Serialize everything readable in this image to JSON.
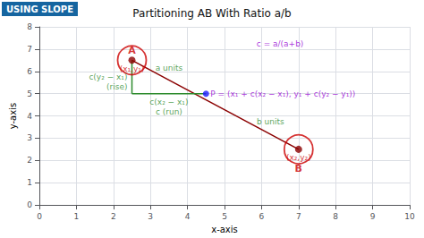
{
  "chart_data": {
    "type": "line",
    "title": "Partitioning AB With Ratio a/b",
    "xlabel": "x-axis",
    "ylabel": "y-axis",
    "xlim": [
      0,
      10
    ],
    "ylim": [
      0,
      8
    ],
    "xticks": [
      0,
      1,
      2,
      3,
      4,
      5,
      6,
      7,
      8,
      9,
      10
    ],
    "yticks": [
      0,
      1,
      2,
      3,
      4,
      5,
      6,
      7,
      8
    ],
    "grid": true,
    "series": [
      {
        "type": "line",
        "color": "#8B0000",
        "x": [
          2.5,
          7
        ],
        "values": [
          6.5,
          2.5
        ]
      },
      {
        "type": "line",
        "color": "#2e8b2e",
        "x": [
          2.5,
          2.5
        ],
        "values": [
          6.5,
          5.0
        ]
      },
      {
        "type": "line",
        "color": "#2e8b2e",
        "x": [
          2.5,
          4.5
        ],
        "values": [
          5.0,
          5.0
        ]
      },
      {
        "type": "scatter",
        "marker": "ring",
        "color": "#cc0000",
        "x": [
          2.5,
          7
        ],
        "values": [
          6.5,
          2.5
        ]
      },
      {
        "type": "scatter",
        "marker": "circle",
        "color": "#8B0000",
        "x": [
          2.5,
          7
        ],
        "values": [
          6.5,
          2.5
        ]
      },
      {
        "type": "scatter",
        "marker": "circle",
        "color": "#1a1aff",
        "x": [
          4.5
        ],
        "values": [
          5.0
        ]
      }
    ],
    "annotations": [
      {
        "text": "A",
        "x": 2.5,
        "y": 6.5,
        "position": "top",
        "color": "#cc0000"
      },
      {
        "text": "(x₁,y₁)",
        "x": 2.5,
        "y": 6.5,
        "position": "bottom",
        "color": "#cc0000"
      },
      {
        "text": "(x₂,y₂)",
        "x": 7,
        "y": 2.5,
        "position": "bottom",
        "color": "#cc0000"
      },
      {
        "text": "B",
        "x": 7,
        "y": 2.5,
        "position": "bottom",
        "color": "#cc0000"
      },
      {
        "text": "c(y₂ − x₁)",
        "x": 2.5,
        "y": 5.75,
        "position": "left",
        "color": "#2e8b2e"
      },
      {
        "text": "(rise)",
        "x": 2.5,
        "y": 5.75,
        "position": "left",
        "color": "#2e8b2e"
      },
      {
        "text": "c(x₂ − x₁)",
        "x": 3.5,
        "y": 5.0,
        "position": "bottom",
        "color": "#2e8b2e"
      },
      {
        "text": "c (run)",
        "x": 3.5,
        "y": 5.0,
        "position": "bottom",
        "color": "#2e8b2e"
      },
      {
        "text": "a units",
        "x": 3.5,
        "y": 5.75,
        "position": "top",
        "color": "#2e8b2e"
      },
      {
        "text": "b units",
        "x": 5.75,
        "y": 3.75,
        "position": "right",
        "color": "#2e8b2e"
      },
      {
        "text": "P = (x₁ + c(x₂ − x₁), y₁ + c(y₂ − y₁))",
        "x": 4.5,
        "y": 5.0,
        "position": "right",
        "color": "#9400D3"
      },
      {
        "text": "c = a/(a+b)",
        "x": 6.5,
        "y": 7.6,
        "position": "bottom",
        "color": "#9400D3"
      },
      {
        "text": "USING SLOPE",
        "position": "corner",
        "color": "#ffffff",
        "box_color": "#1565a0"
      }
    ]
  }
}
